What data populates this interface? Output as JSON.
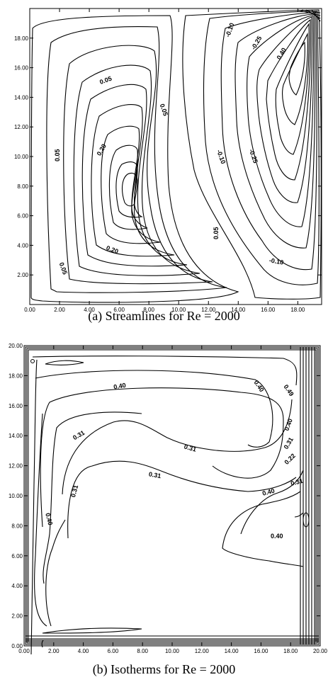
{
  "panel_a": {
    "caption": "(a) Streamlines for Re = 2000",
    "x_ticks": [
      "0.00",
      "2.00",
      "4.00",
      "6.00",
      "8.00",
      "10.00",
      "12.00",
      "14.00",
      "16.00",
      "18.00"
    ],
    "y_ticks": [
      "2.00",
      "4.00",
      "6.00",
      "8.00",
      "10.00",
      "12.00",
      "14.00",
      "16.00",
      "18.00"
    ],
    "contour_labels": {
      "l1": "0.05",
      "l2": "0.20",
      "l3": "0.05",
      "l4": "0.05",
      "l5": "0.05",
      "l6": "0.20",
      "l7": "0.05",
      "l8": "-0.10",
      "l9": "-0.25",
      "l10": "0.40",
      "l11": "-0.10",
      "l12": "-0.25",
      "l13": "-0.10"
    }
  },
  "panel_b": {
    "caption": "(b) Isotherms for Re = 2000",
    "x_ticks": [
      "0.00",
      "2.00",
      "4.00",
      "6.00",
      "8.00",
      "10.00",
      "12.00",
      "14.00",
      "16.00",
      "18.00",
      "20.00"
    ],
    "y_ticks": [
      "0.00",
      "2.00",
      "4.00",
      "6.00",
      "8.00",
      "10.00",
      "12.00",
      "14.00",
      "16.00",
      "18.00",
      "20.00"
    ],
    "contour_labels": {
      "m1": "0.40",
      "m2": "0.40",
      "m3": "0.49",
      "m4": "0.31",
      "m5": "0.31",
      "m6": "0.40",
      "m7": "0.31",
      "m8": "0.22",
      "m9": "0.31",
      "m10": "0.31",
      "m11": "0.40",
      "m12": "0.40",
      "m13": "0.31",
      "m14": "0.40"
    }
  }
}
